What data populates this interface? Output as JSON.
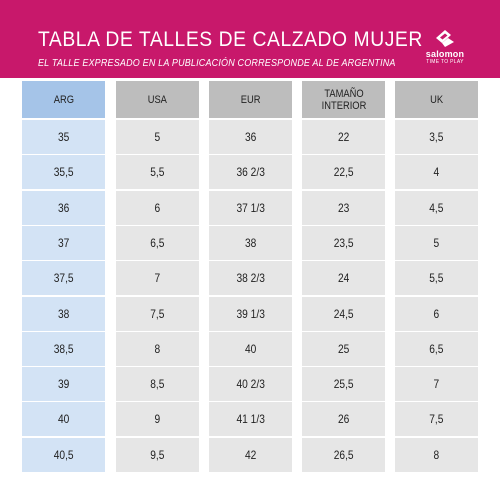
{
  "header": {
    "title": "TABLA DE TALLES DE CALZADO MUJER",
    "subtitle": "EL TALLE EXPRESADO EN LA PUBLICACIÓN CORRESPONDE AL DE ARGENTINA",
    "brand": "salomon",
    "brand_tagline": "TIME TO PLAY",
    "background_color": "#c8186b"
  },
  "table": {
    "columns": [
      "ARG",
      "USA",
      "EUR",
      "TAMAÑO INTERIOR",
      "UK"
    ],
    "rows": [
      [
        "35",
        "5",
        "36",
        "22",
        "3,5"
      ],
      [
        "35,5",
        "5,5",
        "36 2/3",
        "22,5",
        "4"
      ],
      [
        "36",
        "6",
        "37 1/3",
        "23",
        "4,5"
      ],
      [
        "37",
        "6,5",
        "38",
        "23,5",
        "5"
      ],
      [
        "37,5",
        "7",
        "38 2/3",
        "24",
        "5,5"
      ],
      [
        "38",
        "7,5",
        "39 1/3",
        "24,5",
        "6"
      ],
      [
        "38,5",
        "8",
        "40",
        "25",
        "6,5"
      ],
      [
        "39",
        "8,5",
        "40 2/3",
        "25,5",
        "7"
      ],
      [
        "40",
        "9",
        "41 1/3",
        "26",
        "7,5"
      ],
      [
        "40,5",
        "9,5",
        "42",
        "26,5",
        "8"
      ]
    ],
    "colors": {
      "arg_header": "#a5c4e8",
      "arg_cell": "#d3e3f5",
      "header": "#bdbdbd",
      "cell": "#e6e6e6"
    }
  }
}
